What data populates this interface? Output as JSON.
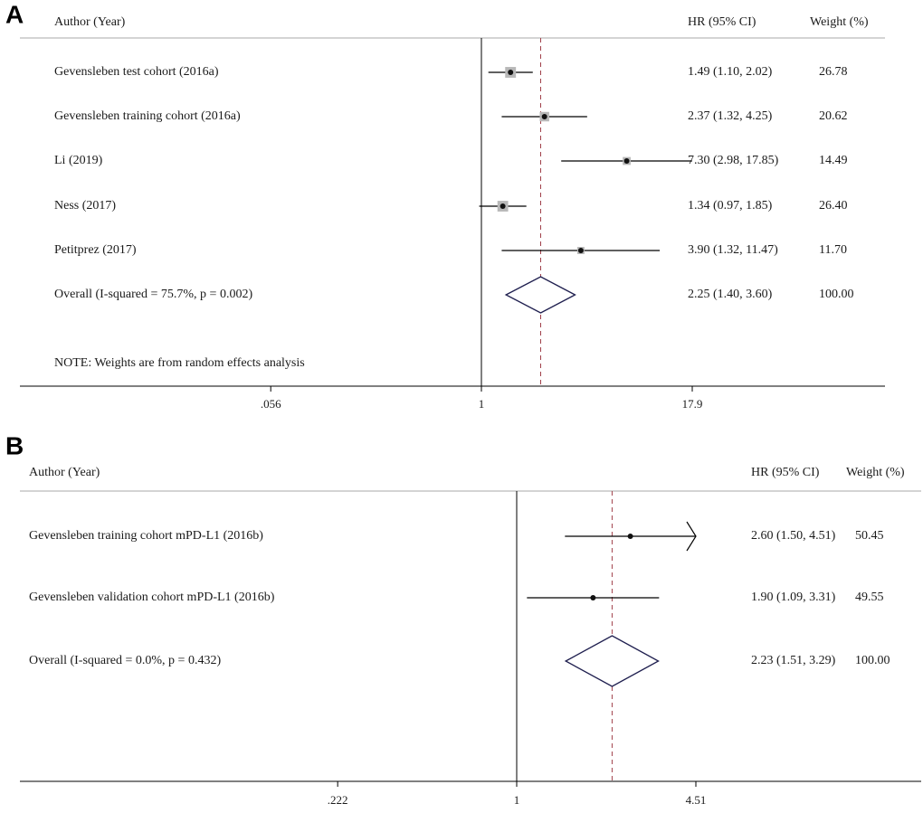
{
  "chart_data": [
    {
      "type": "forest",
      "panel_label": "A",
      "headers": {
        "study": "Author (Year)",
        "effect": "HR (95% CI)",
        "weight": "Weight (%)"
      },
      "axis": {
        "scale": "log",
        "ticks": [
          {
            "value": 0.056,
            "label": ".056"
          },
          {
            "value": 1,
            "label": "1"
          },
          {
            "value": 17.9,
            "label": "17.9"
          }
        ],
        "xlim": [
          0.015,
          110
        ]
      },
      "null_line": 1,
      "pooled_line": 2.25,
      "rows": [
        {
          "label": "Gevensleben test cohort (2016a)",
          "hr": 1.49,
          "lo": 1.1,
          "hi": 2.02,
          "ci_text": "1.49 (1.10, 2.02)",
          "weight": 26.78,
          "weight_text": "26.78"
        },
        {
          "label": "Gevensleben training cohort (2016a)",
          "hr": 2.37,
          "lo": 1.32,
          "hi": 4.25,
          "ci_text": "2.37 (1.32, 4.25)",
          "weight": 20.62,
          "weight_text": "20.62"
        },
        {
          "label": "Li (2019)",
          "hr": 7.3,
          "lo": 2.98,
          "hi": 17.85,
          "ci_text": "7.30 (2.98, 17.85)",
          "weight": 14.49,
          "weight_text": "14.49"
        },
        {
          "label": "Ness (2017)",
          "hr": 1.34,
          "lo": 0.97,
          "hi": 1.85,
          "ci_text": "1.34 (0.97, 1.85)",
          "weight": 26.4,
          "weight_text": "26.40"
        },
        {
          "label": "Petitprez (2017)",
          "hr": 3.9,
          "lo": 1.32,
          "hi": 11.47,
          "ci_text": "3.90 (1.32, 11.47)",
          "weight": 11.7,
          "weight_text": "11.70"
        }
      ],
      "overall": {
        "label": "Overall  (I-squared = 75.7%, p = 0.002)",
        "hr": 2.25,
        "lo": 1.4,
        "hi": 3.6,
        "ci_text": "2.25 (1.40, 3.60)",
        "weight_text": "100.00"
      },
      "note": "NOTE: Weights are from random effects analysis"
    },
    {
      "type": "forest",
      "panel_label": "B",
      "headers": {
        "study": "Author (Year)",
        "effect": "HR (95% CI)",
        "weight": "Weight (%)"
      },
      "axis": {
        "scale": "log",
        "ticks": [
          {
            "value": 0.222,
            "label": ".222"
          },
          {
            "value": 1,
            "label": "1"
          },
          {
            "value": 4.51,
            "label": "4.51"
          }
        ],
        "xlim": [
          0.035,
          12
        ]
      },
      "null_line": 1,
      "pooled_line": 2.23,
      "rows": [
        {
          "label": "Gevensleben training cohort mPD-L1 (2016b)",
          "hr": 2.6,
          "lo": 1.5,
          "hi": 4.51,
          "ci_text": "2.60 (1.50, 4.51)",
          "weight": 50.45,
          "weight_text": "50.45",
          "arrow_right": true
        },
        {
          "label": "Gevensleben validation cohort mPD-L1 (2016b)",
          "hr": 1.9,
          "lo": 1.09,
          "hi": 3.31,
          "ci_text": "1.90 (1.09, 3.31)",
          "weight": 49.55,
          "weight_text": "49.55"
        }
      ],
      "overall": {
        "label": "Overall  (I-squared = 0.0%, p = 0.432)",
        "hr": 2.23,
        "lo": 1.51,
        "hi": 3.29,
        "ci_text": "2.23 (1.51, 3.29)",
        "weight_text": "100.00"
      },
      "note": ""
    }
  ]
}
